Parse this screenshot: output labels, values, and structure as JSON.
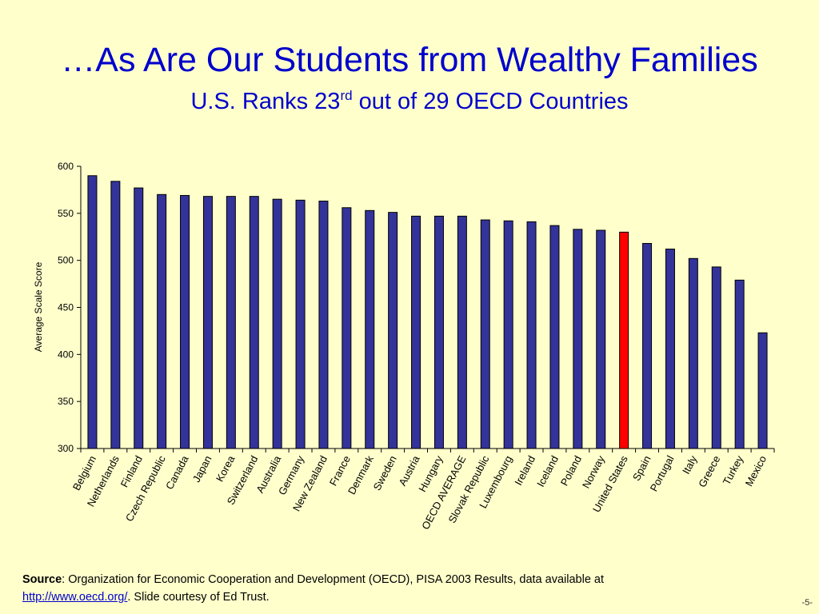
{
  "slide": {
    "title": "…As Are Our Students from Wealthy Families",
    "subtitle_pre": "U.S. Ranks 23",
    "subtitle_sup": "rd",
    "subtitle_post": " out of 29 OECD Countries",
    "source_label": "Source",
    "source_text": ": Organization for Economic Cooperation and Development (OECD), PISA 2003 Results, data available at",
    "source_link": "http://www.oecd.org/",
    "source_tail": ". Slide courtesy of Ed Trust.",
    "page_number": "-5-"
  },
  "colors": {
    "background": "#ffffcc",
    "title": "#0000cc",
    "bar": "#333399",
    "highlight_bar": "#ff0000"
  },
  "chart_data": {
    "type": "bar",
    "title": "",
    "xlabel": "",
    "ylabel": "Average Scale Score",
    "ylim": [
      300,
      600
    ],
    "yticks": [
      300,
      350,
      400,
      450,
      500,
      550,
      600
    ],
    "grid": false,
    "highlight": "United States",
    "categories": [
      "Belgium",
      "Netherlands",
      "Finland",
      "Czech Republic",
      "Canada",
      "Japan",
      "Korea",
      "Switzerland",
      "Australia",
      "Germany",
      "New Zealand",
      "France",
      "Denmark",
      "Sweden",
      "Austria",
      "Hungary",
      "OECD AVERAGE",
      "Slovak Republic",
      "Luxembourg",
      "Ireland",
      "Iceland",
      "Poland",
      "Norway",
      "United States",
      "Spain",
      "Portugal",
      "Italy",
      "Greece",
      "Turkey",
      "Mexico"
    ],
    "values": [
      590,
      584,
      577,
      570,
      569,
      568,
      568,
      568,
      565,
      564,
      563,
      556,
      553,
      551,
      547,
      547,
      547,
      543,
      542,
      541,
      537,
      533,
      532,
      530,
      518,
      512,
      502,
      493,
      479,
      423
    ]
  }
}
